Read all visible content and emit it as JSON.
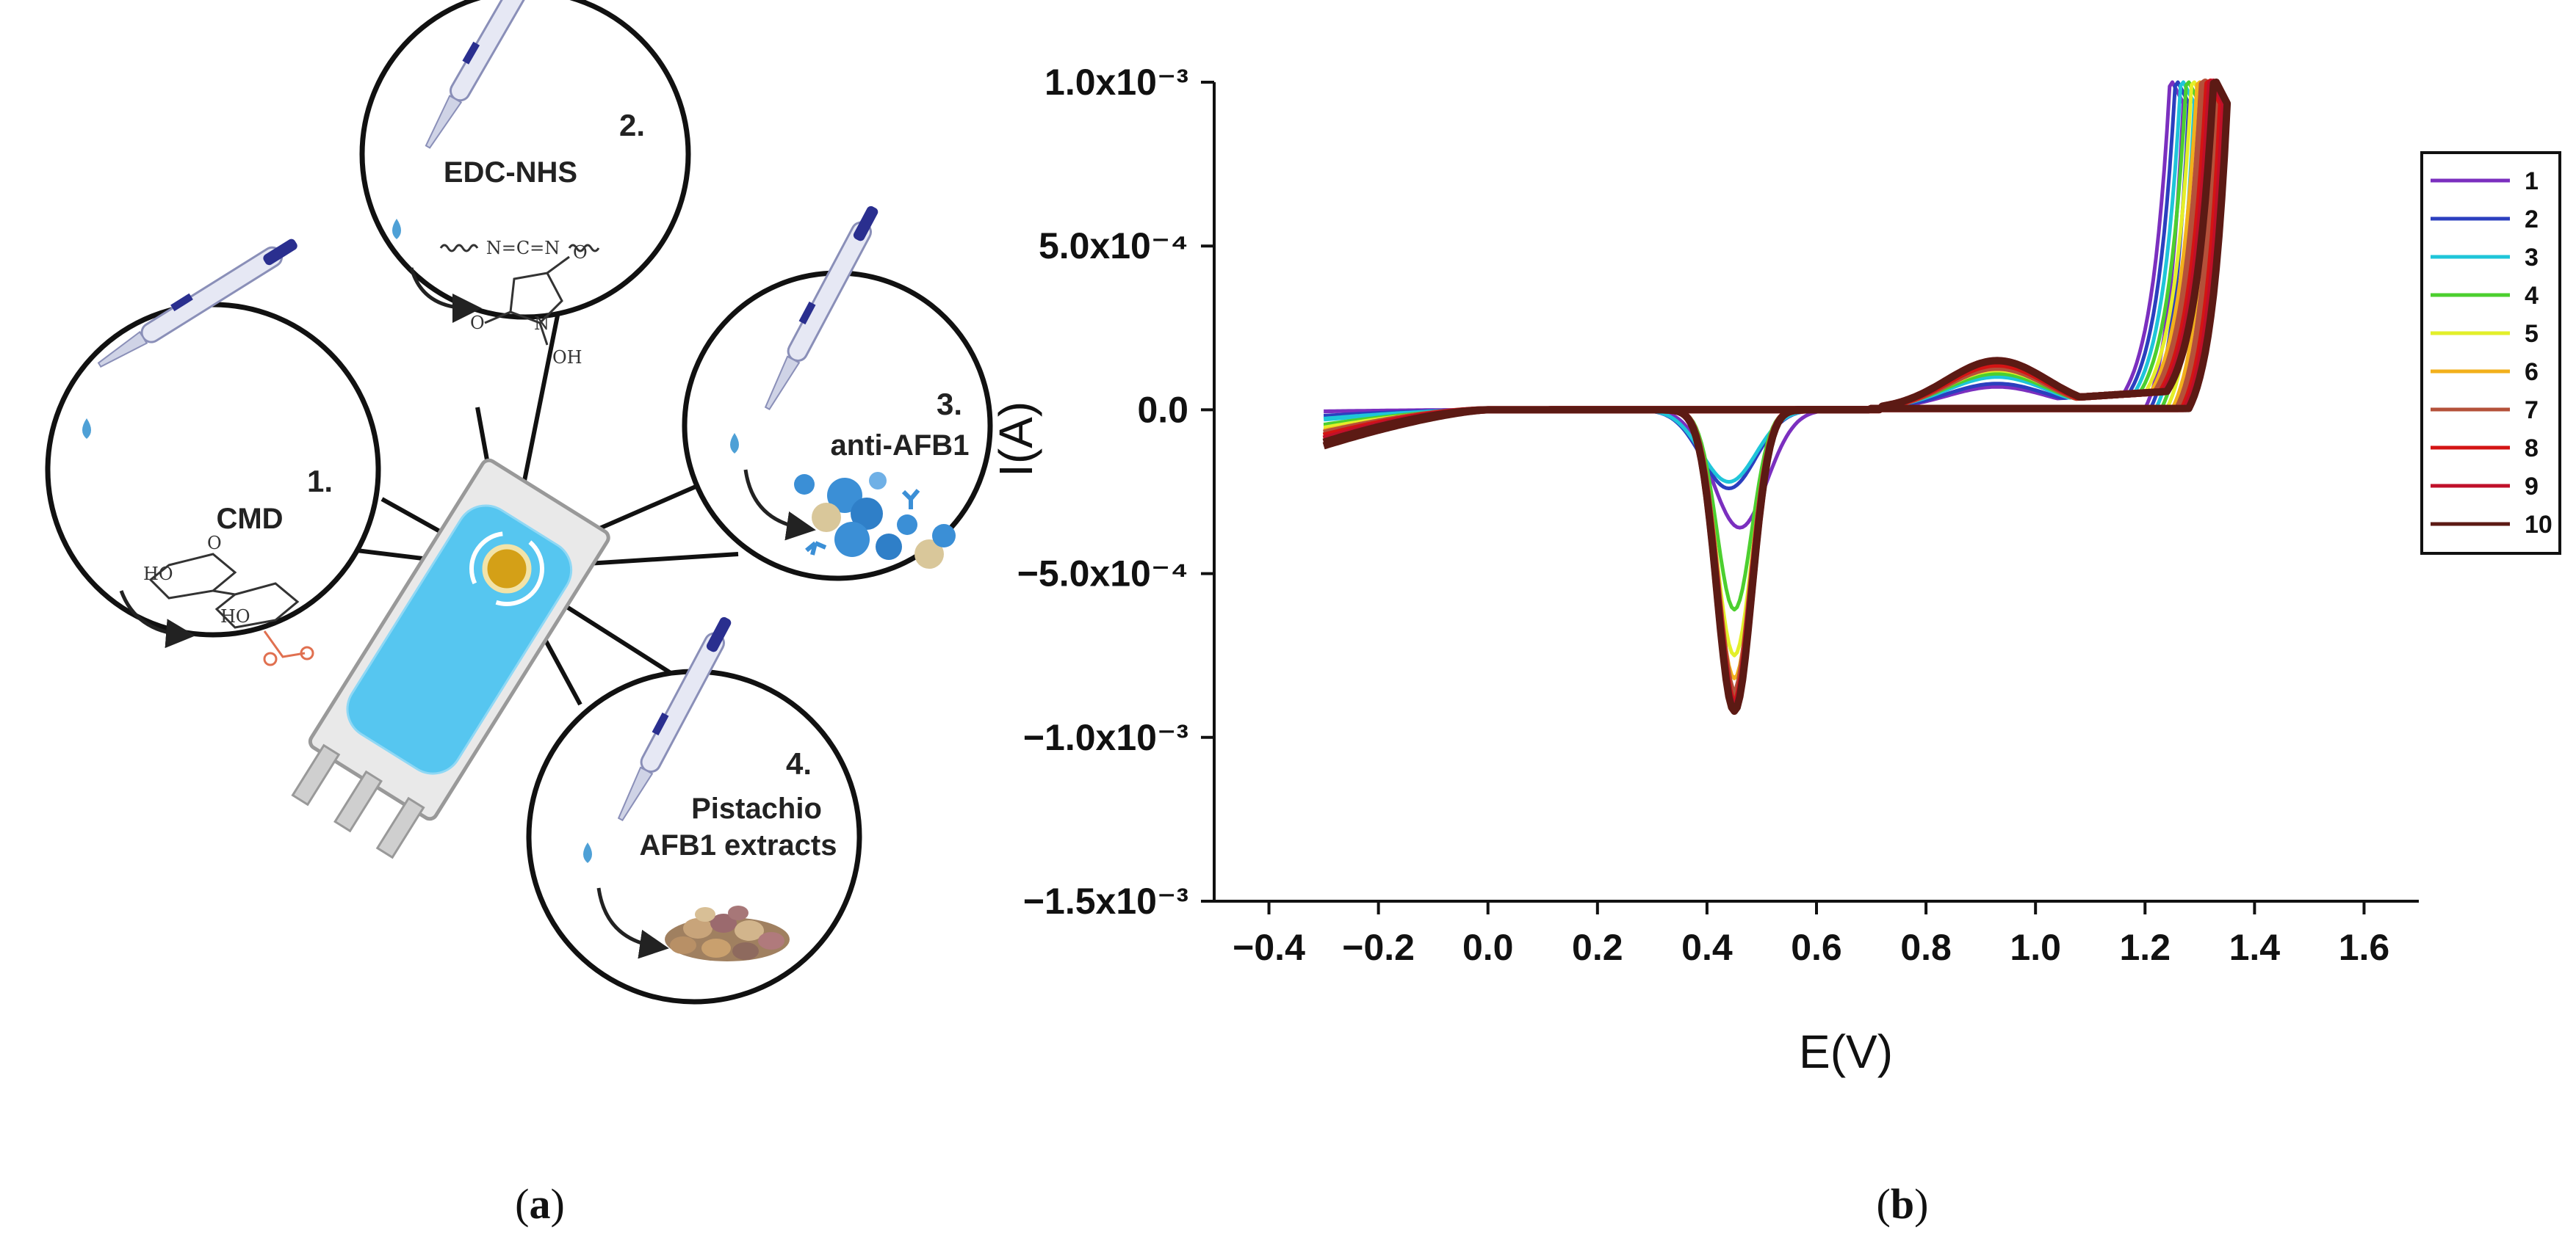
{
  "panel_a": {
    "caption": {
      "open": "(",
      "letter": "a",
      "close": ")"
    },
    "steps": [
      {
        "number": "1.",
        "label": "CMD"
      },
      {
        "number": "2.",
        "label": "EDC-NHS"
      },
      {
        "number": "3.",
        "label": "anti-AFB1"
      },
      {
        "number": "4.",
        "label_line1": "Pistachio",
        "label_line2": "AFB1 extracts"
      }
    ],
    "chem_labels": {
      "carbodiimide": "N=C=N",
      "nhs_n": "N",
      "nhs_oh": "OH",
      "nhs_o1": "O",
      "nhs_o2": "O",
      "cmd_ho": "HO",
      "cmd_o": "O"
    }
  },
  "panel_b": {
    "caption": {
      "open": "(",
      "letter": "b",
      "close": ")"
    }
  },
  "chart_data": {
    "type": "line",
    "title": "",
    "xlabel": "E(V)",
    "ylabel": "I(A)",
    "xlim": [
      -0.5,
      1.7
    ],
    "ylim": [
      -0.0015,
      0.001
    ],
    "xticks": [
      -0.4,
      -0.2,
      0.0,
      0.2,
      0.4,
      0.6,
      0.8,
      1.0,
      1.2,
      1.4,
      1.6
    ],
    "xtick_labels": [
      "−0.4",
      "−0.2",
      "0.0",
      "0.2",
      "0.4",
      "0.6",
      "0.8",
      "1.0",
      "1.2",
      "1.4",
      "1.6"
    ],
    "yticks": [
      -0.0015,
      -0.001,
      -0.0005,
      0.0,
      0.0005,
      0.001
    ],
    "ytick_labels": [
      "−1.5x10⁻³",
      "−1.0x10⁻³",
      "−5.0x10⁻⁴",
      "0.0",
      "5.0x10⁻⁴",
      "1.0x10⁻³"
    ],
    "legend_position": "right",
    "grid": false,
    "series": [
      {
        "name": "1",
        "color": "#7b2fbf",
        "cathodic_peak_E": 0.46,
        "cathodic_peak_I": -0.00036,
        "anodic_hump_I": 7e-05,
        "start_I": -5e-06,
        "rise_E": 1.28
      },
      {
        "name": "2",
        "color": "#2b3fbf",
        "cathodic_peak_E": 0.44,
        "cathodic_peak_I": -0.00024,
        "anodic_hump_I": 8e-05,
        "start_I": -2e-05,
        "rise_E": 1.29
      },
      {
        "name": "3",
        "color": "#1fc5d9",
        "cathodic_peak_E": 0.44,
        "cathodic_peak_I": -0.00022,
        "anodic_hump_I": 0.0001,
        "start_I": -3e-05,
        "rise_E": 1.3
      },
      {
        "name": "4",
        "color": "#4ccf2f",
        "cathodic_peak_E": 0.45,
        "cathodic_peak_I": -0.00061,
        "anodic_hump_I": 0.00011,
        "start_I": -5e-05,
        "rise_E": 1.31
      },
      {
        "name": "5",
        "color": "#e3ef2a",
        "cathodic_peak_E": 0.45,
        "cathodic_peak_I": -0.00075,
        "anodic_hump_I": 0.00012,
        "start_I": -6e-05,
        "rise_E": 1.32
      },
      {
        "name": "6",
        "color": "#f2b01c",
        "cathodic_peak_E": 0.45,
        "cathodic_peak_I": -0.00082,
        "anodic_hump_I": 0.00013,
        "start_I": -7e-05,
        "rise_E": 1.33
      },
      {
        "name": "7",
        "color": "#b4513a",
        "cathodic_peak_E": 0.45,
        "cathodic_peak_I": -0.00087,
        "anodic_hump_I": 0.00013,
        "start_I": -8e-05,
        "rise_E": 1.34
      },
      {
        "name": "8",
        "color": "#d41414",
        "cathodic_peak_E": 0.45,
        "cathodic_peak_I": -0.0009,
        "anodic_hump_I": 0.00014,
        "start_I": -9e-05,
        "rise_E": 1.35
      },
      {
        "name": "9",
        "color": "#c0102a",
        "cathodic_peak_E": 0.45,
        "cathodic_peak_I": -0.00091,
        "anodic_hump_I": 0.00015,
        "start_I": -0.0001,
        "rise_E": 1.355
      },
      {
        "name": "10",
        "color": "#5c1a14",
        "cathodic_peak_E": 0.45,
        "cathodic_peak_I": -0.00092,
        "anodic_hump_I": 0.00015,
        "start_I": -0.00011,
        "rise_E": 1.36
      }
    ]
  }
}
